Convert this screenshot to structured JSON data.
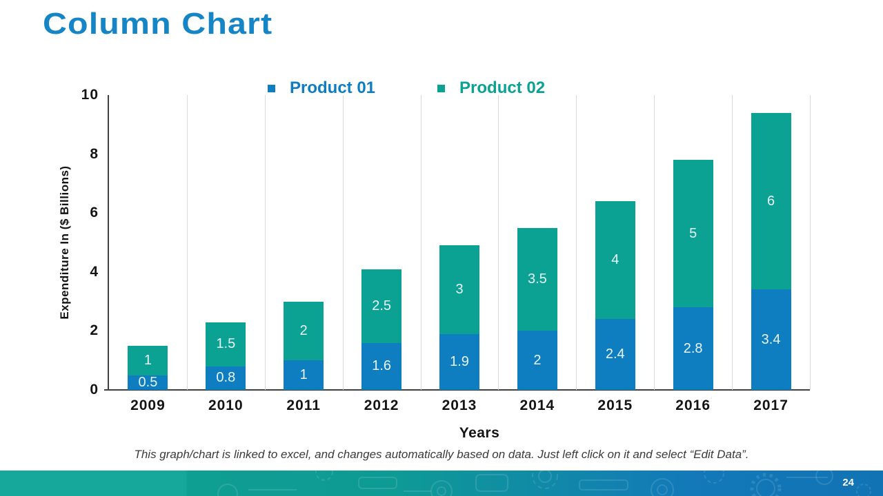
{
  "slide": {
    "title": "Column Chart",
    "footnote": "This graph/chart is linked to excel, and changes automatically based on data. Just left click on it and select “Edit Data”.",
    "page_number": "24"
  },
  "colors": {
    "title": "#1585C5",
    "product1": "#0F7EC0",
    "product2": "#0BA294",
    "gridline": "#D9D9D9",
    "axis_line": "#404040",
    "bar_label": "#EAF5F7",
    "footer_teal": "#15A89A",
    "footer_blue": "#1377B9"
  },
  "chart_data": {
    "type": "bar",
    "stacked": true,
    "categories": [
      "2009",
      "2010",
      "2011",
      "2012",
      "2013",
      "2014",
      "2015",
      "2016",
      "2017"
    ],
    "series": [
      {
        "name": "Product 01",
        "color": "#0F7EC0",
        "values": [
          0.5,
          0.8,
          1,
          1.6,
          1.9,
          2,
          2.4,
          2.8,
          3.4
        ]
      },
      {
        "name": "Product 02",
        "color": "#0BA294",
        "values": [
          1,
          1.5,
          2,
          2.5,
          3,
          3.5,
          4,
          5,
          6
        ]
      }
    ],
    "xlabel": "Years",
    "ylabel": "Expenditure In ($ Billions)",
    "ylim": [
      0,
      10
    ],
    "yticks": [
      0,
      2,
      4,
      6,
      8,
      10
    ],
    "grid": "vertical",
    "legend_position": "top-center",
    "data_labels": "shown-inside-segments"
  }
}
